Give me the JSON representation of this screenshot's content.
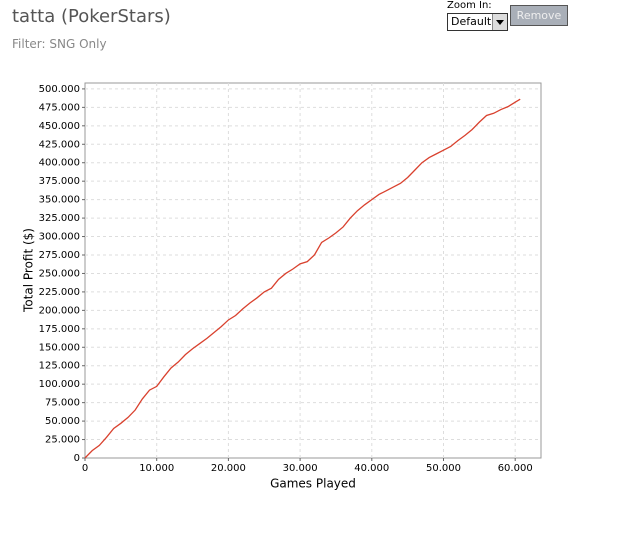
{
  "header": {
    "title": "tatta (PokerStars)",
    "filter": "Filter: SNG Only",
    "zoom_label": "Zoom In:",
    "zoom_value": "Default",
    "button": "Remove"
  },
  "chart_data": {
    "type": "line",
    "x_label": "Games Played",
    "y_label": "Total Profit ($)",
    "x": [
      0,
      1000,
      2000,
      3000,
      4000,
      5000,
      6000,
      7000,
      8000,
      9000,
      10000,
      11000,
      12000,
      13000,
      14000,
      15000,
      16000,
      17000,
      18000,
      19000,
      20000,
      21000,
      22000,
      23000,
      24000,
      25000,
      26000,
      27000,
      28000,
      29000,
      30000,
      31000,
      32000,
      33000,
      34000,
      35000,
      36000,
      37000,
      38000,
      39000,
      40000,
      41000,
      42000,
      43000,
      44000,
      45000,
      46000,
      47000,
      48000,
      49000,
      50000,
      51000,
      52000,
      53000,
      54000,
      55000,
      56000,
      57000,
      58000,
      59000,
      60000,
      60700
    ],
    "series": [
      {
        "color": "#d9412e",
        "values": [
          0,
          10000,
          17000,
          28000,
          40000,
          47000,
          55000,
          65000,
          80000,
          92000,
          97000,
          110000,
          122000,
          130000,
          140000,
          148000,
          155000,
          162000,
          170000,
          178000,
          187000,
          193000,
          202000,
          210000,
          217000,
          225000,
          230000,
          242000,
          250000,
          256000,
          263000,
          266000,
          275000,
          292000,
          298000,
          305000,
          313000,
          325000,
          335000,
          343000,
          350000,
          357000,
          362000,
          367000,
          372000,
          380000,
          390000,
          400000,
          407000,
          412000,
          417000,
          422000,
          430000,
          437000,
          445000,
          455000,
          464000,
          467000,
          472000,
          476000,
          482000,
          486000
        ]
      }
    ],
    "xlim": [
      0,
      63600
    ],
    "ylim": [
      0,
      508000
    ],
    "xticks": [
      0,
      {
        "value": 10000,
        "label": "10.000"
      },
      {
        "value": 20000,
        "label": "20.000"
      },
      {
        "value": 30000,
        "label": "30.000"
      },
      {
        "value": 40000,
        "label": "40.000"
      },
      {
        "value": 50000,
        "label": "50.000"
      },
      {
        "value": 60000,
        "label": "60.000"
      }
    ],
    "yticks": [
      0,
      {
        "value": 25000,
        "label": "25.000"
      },
      {
        "value": 50000,
        "label": "50.000"
      },
      {
        "value": 75000,
        "label": "75.000"
      },
      {
        "value": 100000,
        "label": "100.000"
      },
      {
        "value": 125000,
        "label": "125.000"
      },
      {
        "value": 150000,
        "label": "150.000"
      },
      {
        "value": 175000,
        "label": "175.000"
      },
      {
        "value": 200000,
        "label": "200.000"
      },
      {
        "value": 225000,
        "label": "225.000"
      },
      {
        "value": 250000,
        "label": "250.000"
      },
      {
        "value": 275000,
        "label": "275.000"
      },
      {
        "value": 300000,
        "label": "300.000"
      },
      {
        "value": 325000,
        "label": "325.000"
      },
      {
        "value": 350000,
        "label": "350.000"
      },
      {
        "value": 375000,
        "label": "375.000"
      },
      {
        "value": 400000,
        "label": "400.000"
      },
      {
        "value": 425000,
        "label": "425.000"
      },
      {
        "value": 450000,
        "label": "450.000"
      },
      {
        "value": 475000,
        "label": "475.000"
      },
      {
        "value": 500000,
        "label": "500.000"
      }
    ],
    "grid": true
  }
}
